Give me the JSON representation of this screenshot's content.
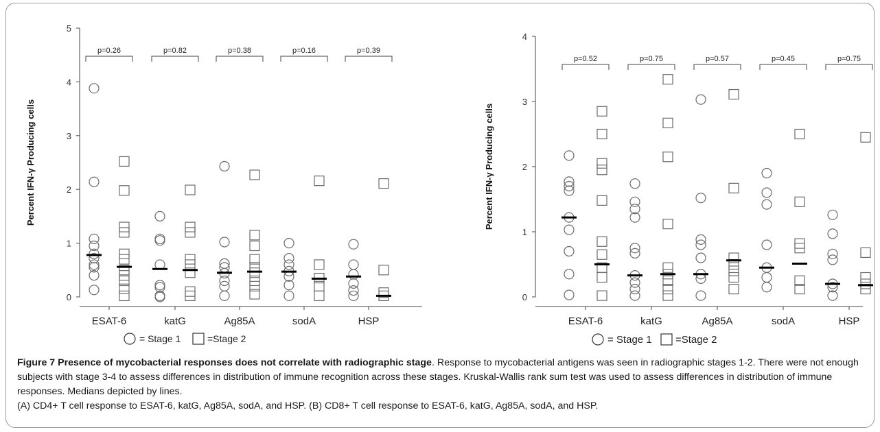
{
  "chart_data": [
    {
      "type": "scatter",
      "panel": "A",
      "title": "",
      "xlabel": "",
      "ylabel": "Percent IFN-γ Producing cells",
      "ylim": [
        0,
        5
      ],
      "yticks": [
        "0",
        "1",
        "2",
        "3",
        "4",
        "5"
      ],
      "categories": [
        "ESAT-6",
        "katG",
        "Ag85A",
        "sodA",
        "HSP"
      ],
      "pvalues": [
        "p=0.26",
        "p=0.82",
        "p=0.38",
        "p=0.16",
        "p=0.39"
      ],
      "legend": {
        "stage1": "= Stage 1",
        "stage2": "=Stage 2",
        "placement": "bottom"
      },
      "series": [
        {
          "name": "Stage 1",
          "marker": "circle",
          "medians": [
            0.78,
            0.52,
            0.45,
            0.47,
            0.38
          ],
          "values": [
            [
              3.88,
              2.14,
              1.08,
              0.95,
              0.8,
              0.72,
              0.6,
              0.55,
              0.4,
              0.13
            ],
            [
              1.5,
              1.08,
              1.05,
              0.6,
              0.22,
              0.18,
              0.02,
              0.0
            ],
            [
              2.43,
              1.02,
              0.62,
              0.55,
              0.44,
              0.3,
              0.2,
              0.02
            ],
            [
              1.0,
              0.72,
              0.6,
              0.48,
              0.38,
              0.22,
              0.02
            ],
            [
              0.98,
              0.6,
              0.42,
              0.25,
              0.12,
              0.02
            ]
          ]
        },
        {
          "name": "Stage 2",
          "marker": "square",
          "medians": [
            0.56,
            0.5,
            0.47,
            0.34,
            0.02
          ],
          "values": [
            [
              2.52,
              1.98,
              1.3,
              1.2,
              0.8,
              0.7,
              0.5,
              0.4,
              0.3,
              0.15,
              0.02
            ],
            [
              1.99,
              1.3,
              1.2,
              0.7,
              0.6,
              0.45,
              0.1,
              0.02
            ],
            [
              2.27,
              1.15,
              0.95,
              0.7,
              0.55,
              0.45,
              0.3,
              0.2,
              0.05
            ],
            [
              2.16,
              0.6,
              0.35,
              0.2,
              0.02
            ],
            [
              2.11,
              0.5,
              0.08,
              0.02
            ]
          ]
        }
      ]
    },
    {
      "type": "scatter",
      "panel": "B",
      "title": "",
      "xlabel": "",
      "ylabel": "Percent IFN-γ Producing cells",
      "ylim": [
        0,
        4
      ],
      "yticks": [
        "0",
        "1",
        "2",
        "3",
        "4"
      ],
      "categories": [
        "ESAT-6",
        "katG",
        "Ag85A",
        "sodA",
        "HSP"
      ],
      "pvalues": [
        "p=0.52",
        "p=0.75",
        "p=0.57",
        "p=0.45",
        "p=0.75"
      ],
      "legend": {
        "stage1": "= Stage 1",
        "stage2": "=Stage 2",
        "placement": "bottom"
      },
      "series": [
        {
          "name": "Stage 1",
          "marker": "circle",
          "medians": [
            1.22,
            0.33,
            0.35,
            0.45,
            0.2
          ],
          "values": [
            [
              2.17,
              1.77,
              1.7,
              1.63,
              1.22,
              1.03,
              0.7,
              0.35,
              0.03
            ],
            [
              1.74,
              1.46,
              1.35,
              1.22,
              0.75,
              0.67,
              0.33,
              0.22,
              0.12,
              0.02
            ],
            [
              3.03,
              1.52,
              0.88,
              0.8,
              0.6,
              0.35,
              0.28,
              0.02
            ],
            [
              1.9,
              1.6,
              1.42,
              0.8,
              0.45,
              0.3,
              0.15
            ],
            [
              1.26,
              0.97,
              0.66,
              0.57,
              0.2,
              0.15,
              0.02
            ]
          ]
        },
        {
          "name": "Stage 2",
          "marker": "square",
          "medians": [
            0.5,
            0.35,
            0.56,
            0.51,
            0.18
          ],
          "values": [
            [
              2.85,
              2.5,
              2.05,
              1.95,
              1.48,
              0.85,
              0.65,
              0.45,
              0.3,
              0.02
            ],
            [
              3.34,
              2.67,
              2.15,
              1.12,
              0.45,
              0.35,
              0.25,
              0.12,
              0.02
            ],
            [
              3.11,
              1.67,
              0.6,
              0.5,
              0.4,
              0.3,
              0.12
            ],
            [
              2.5,
              1.46,
              0.82,
              0.75,
              0.25,
              0.12
            ],
            [
              2.45,
              0.68,
              0.3,
              0.2,
              0.12
            ]
          ]
        }
      ]
    }
  ],
  "caption": {
    "title": "Figure 7 Presence of mycobacterial responses does not correlate with radiographic stage",
    "body": ". Response to mycobacterial antigens was seen in radiographic stages 1-2. There were not enough subjects with stage 3-4 to assess differences in distribution of immune recognition across these stages. Kruskal-Wallis rank sum test was used to assess differences in distribution of immune responses. Medians depicted by lines.",
    "panels": "(A) CD4+ T cell response to ESAT-6, katG, Ag85A, sodA, and HSP. (B) CD8+ T cell response to ESAT-6, katG, Ag85A, sodA, and HSP."
  }
}
